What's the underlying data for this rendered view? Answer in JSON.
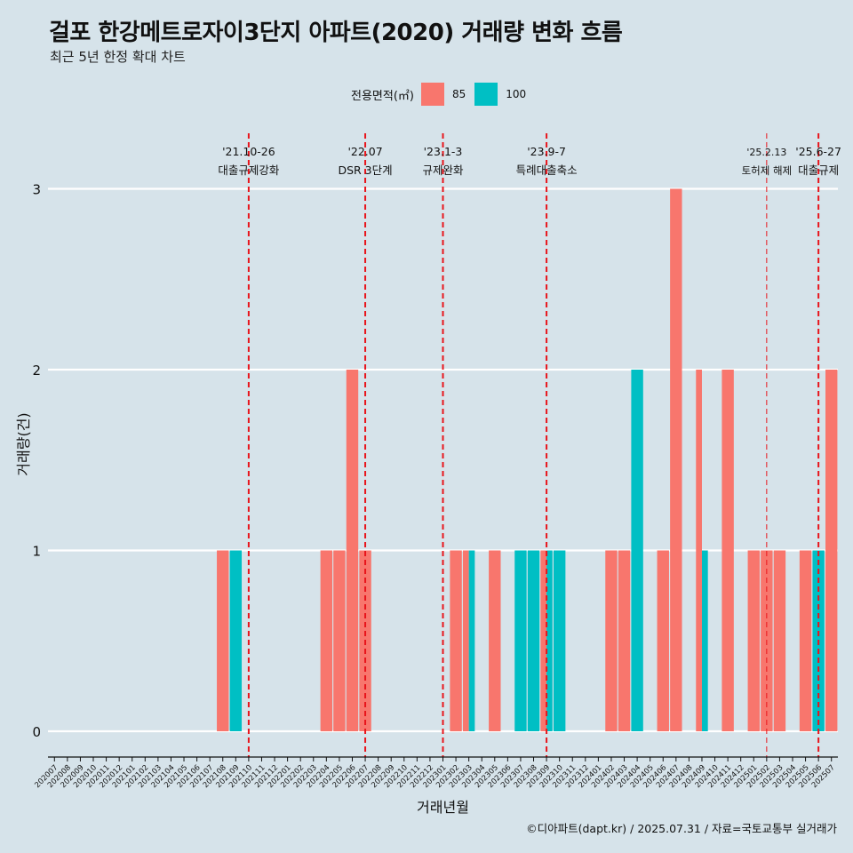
{
  "header": {
    "title": "걸포 한강메트로자이3단지 아파트(2020) 거래량 변화 흐름",
    "subtitle": "최근 5년 한정 확대 차트"
  },
  "footer": {
    "caption": "©디아파트(dapt.kr) / 2025.07.31 / 자료=국토교통부 실거래가"
  },
  "chart_data": {
    "type": "bar",
    "xlabel": "거래년월",
    "ylabel": "거래량(건)",
    "legend_title": "전용면적(㎡)",
    "legend_position": "top",
    "ylim": [
      0,
      3
    ],
    "yticks": [
      0,
      1,
      2,
      3
    ],
    "categories": [
      "202007",
      "202008",
      "202009",
      "202010",
      "202011",
      "202012",
      "202101",
      "202102",
      "202103",
      "202104",
      "202105",
      "202106",
      "202107",
      "202108",
      "202109",
      "202110",
      "202111",
      "202112",
      "202201",
      "202202",
      "202203",
      "202204",
      "202205",
      "202206",
      "202207",
      "202208",
      "202209",
      "202210",
      "202211",
      "202212",
      "202301",
      "202302",
      "202303",
      "202304",
      "202305",
      "202306",
      "202307",
      "202308",
      "202309",
      "202310",
      "202311",
      "202312",
      "202401",
      "202402",
      "202403",
      "202404",
      "202405",
      "202406",
      "202407",
      "202408",
      "202409",
      "202410",
      "202411",
      "202412",
      "202501",
      "202502",
      "202503",
      "202504",
      "202505",
      "202506",
      "202507"
    ],
    "series": [
      {
        "name": "85",
        "color": "#f8766d",
        "values": [
          0,
          0,
          0,
          0,
          0,
          0,
          0,
          0,
          0,
          0,
          0,
          0,
          0,
          1,
          0,
          0,
          0,
          0,
          0,
          0,
          0,
          1,
          1,
          2,
          1,
          0,
          0,
          0,
          0,
          0,
          0,
          1,
          1,
          0,
          1,
          0,
          0,
          0,
          1,
          0,
          0,
          0,
          0,
          1,
          1,
          0,
          0,
          1,
          3,
          0,
          2,
          0,
          2,
          0,
          1,
          1,
          1,
          0,
          1,
          0,
          2
        ]
      },
      {
        "name": "100",
        "color": "#00bfc4",
        "values": [
          0,
          0,
          0,
          0,
          0,
          0,
          0,
          0,
          0,
          0,
          0,
          0,
          0,
          0,
          1,
          0,
          0,
          0,
          0,
          0,
          0,
          0,
          0,
          0,
          0,
          0,
          0,
          0,
          0,
          0,
          0,
          0,
          1,
          0,
          0,
          0,
          1,
          1,
          1,
          1,
          0,
          0,
          0,
          0,
          0,
          2,
          0,
          0,
          0,
          0,
          1,
          0,
          0,
          0,
          0,
          0,
          0,
          0,
          0,
          1,
          0
        ]
      }
    ],
    "events": [
      {
        "date": "'21.10-26",
        "label": "대출규제강화",
        "category": "202110",
        "style": "bold"
      },
      {
        "date": "'22.07",
        "label": "DSR 3단계",
        "category": "202207",
        "style": "bold"
      },
      {
        "date": "'23.1-3",
        "label": "규제완화",
        "category": "202301",
        "style": "bold"
      },
      {
        "date": "'23.9-7",
        "label": "특례대출축소",
        "category": "202309",
        "style": "bold"
      },
      {
        "date": "'25.2.13",
        "label": "토허제 해제",
        "category": "202502",
        "style": "thin"
      },
      {
        "date": "'25.6-27",
        "label": "대출규제",
        "category": "202506",
        "style": "bold"
      }
    ]
  }
}
